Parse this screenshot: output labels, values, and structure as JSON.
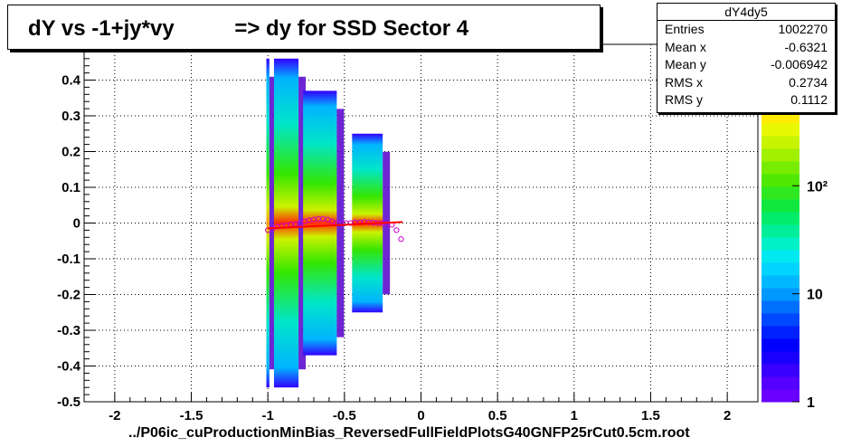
{
  "title": "dY vs -1+jy*vy          => dy for SSD Sector 4",
  "file_label": "../P06ic_cuProductionMinBias_ReversedFullFieldPlotsG40GNFP25rCut0.5cm.root",
  "stats_box": {
    "name": "dY4dy5",
    "rows": [
      {
        "label": "Entries",
        "value": "1002270"
      },
      {
        "label": "Mean x",
        "value": "-0.6321"
      },
      {
        "label": "Mean y",
        "value": "-0.006942"
      },
      {
        "label": "RMS x",
        "value": "0.2734"
      },
      {
        "label": "RMS y",
        "value": "0.1112"
      }
    ]
  },
  "chart_data": {
    "type": "heatmap",
    "title": "dY vs -1+jy*vy          => dy for SSD Sector 4",
    "xlabel": "",
    "ylabel": "",
    "xlim": [
      -2.2,
      2.2
    ],
    "ylim": [
      -0.5,
      0.5
    ],
    "x_ticks": [
      "-2",
      "-1.5",
      "-1",
      "-0.5",
      "0",
      "0.5",
      "1",
      "1.5",
      "2"
    ],
    "x_tick_values": [
      -2,
      -1.5,
      -1,
      -0.5,
      0,
      0.5,
      1,
      1.5,
      2
    ],
    "y_ticks": [
      "-0.5",
      "-0.4",
      "-0.3",
      "-0.2",
      "-0.1",
      "0",
      "0.1",
      "0.2",
      "0.3",
      "0.4"
    ],
    "y_tick_values": [
      -0.5,
      -0.4,
      -0.3,
      -0.2,
      -0.1,
      0,
      0.1,
      0.2,
      0.3,
      0.4
    ],
    "grid": true,
    "colorbar": {
      "scale": "log",
      "min": 1,
      "labels": [
        "1",
        "10",
        "10²"
      ],
      "label_values": [
        1,
        10,
        100
      ]
    },
    "bands": [
      {
        "x_range": [
          -1.01,
          -0.99
        ],
        "y_range": [
          -0.46,
          0.46
        ],
        "peak_color": "#ff9a00"
      },
      {
        "x_range": [
          -0.96,
          -0.8
        ],
        "y_range": [
          -0.46,
          0.46
        ],
        "peak_color": "#ff2a00"
      },
      {
        "x_range": [
          -0.77,
          -0.55
        ],
        "y_range": [
          -0.37,
          0.37
        ],
        "peak_color": "#ff2a00"
      },
      {
        "x_range": [
          -0.45,
          -0.25
        ],
        "y_range": [
          -0.25,
          0.25
        ],
        "peak_color": "#ff2a00"
      }
    ],
    "profile": {
      "x": [
        -1.0,
        -0.97,
        -0.94,
        -0.91,
        -0.88,
        -0.85,
        -0.82,
        -0.79,
        -0.76,
        -0.73,
        -0.7,
        -0.67,
        -0.64,
        -0.61,
        -0.58,
        -0.55,
        -0.52,
        -0.49,
        -0.46,
        -0.43,
        -0.4,
        -0.37,
        -0.34,
        -0.31,
        -0.28,
        -0.25,
        -0.22,
        -0.19,
        -0.16,
        -0.13
      ],
      "y": [
        -0.02,
        -0.015,
        -0.01,
        -0.008,
        -0.006,
        -0.004,
        -0.003,
        0.0,
        0.005,
        0.008,
        0.01,
        0.012,
        0.012,
        0.01,
        0.005,
        0.0,
        -0.002,
        0.0,
        0.0,
        0.002,
        0.002,
        0.003,
        0.002,
        0.001,
        0.0,
        0.0,
        -0.002,
        -0.005,
        -0.02,
        -0.045
      ]
    },
    "fit_line": {
      "x": [
        -1.0,
        -0.12
      ],
      "y": [
        -0.015,
        0.003
      ]
    }
  }
}
